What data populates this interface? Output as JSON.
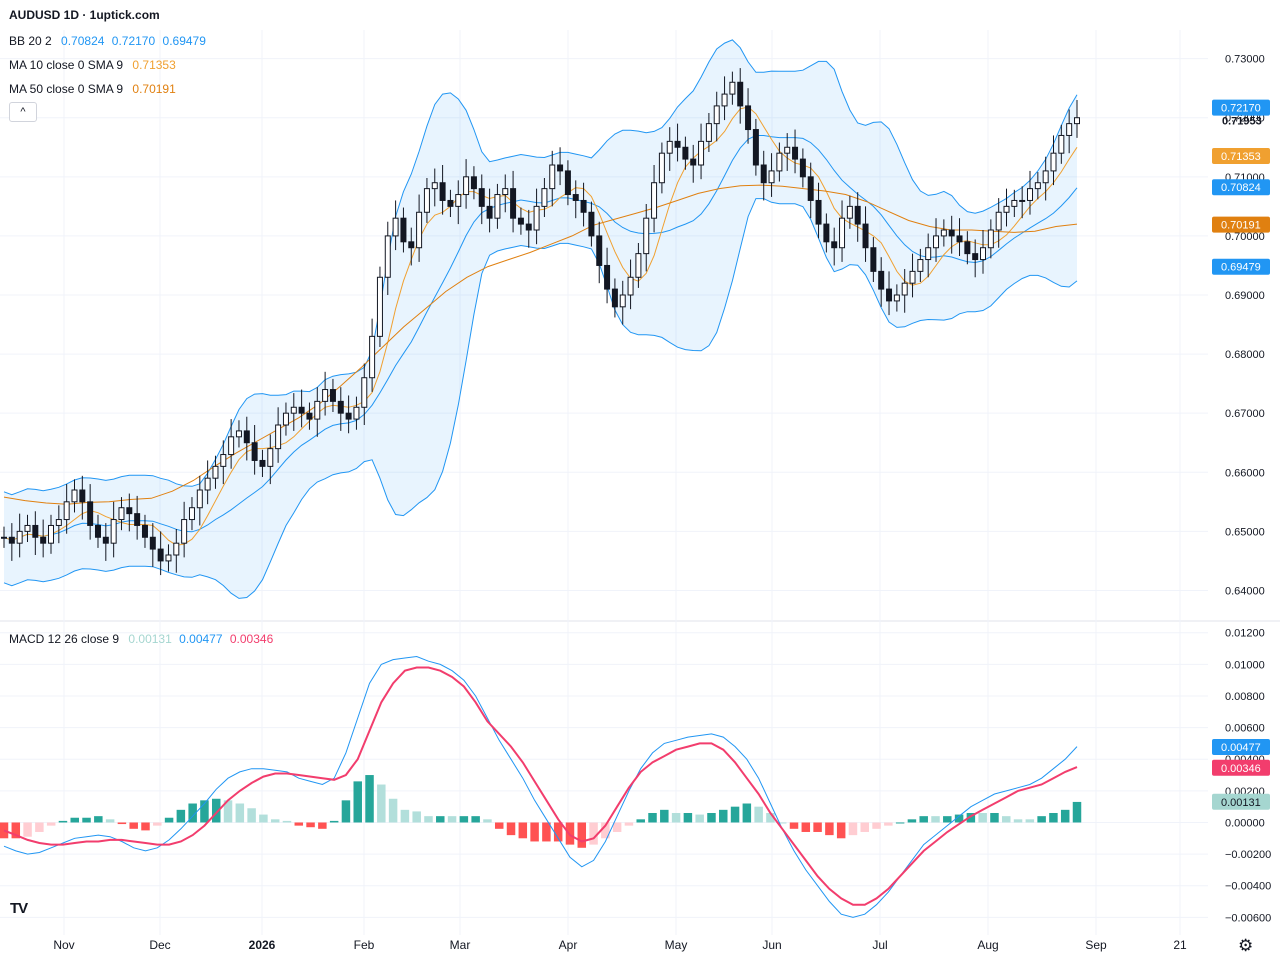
{
  "header": {
    "title": "AUDUSD 1D · 1uptick.com"
  },
  "legends": {
    "bb": {
      "name": "BB 20 2",
      "values": [
        "0.70824",
        "0.72170",
        "0.69479"
      ],
      "color": "#2196f3"
    },
    "ma10": {
      "name": "MA 10 close 0 SMA 9",
      "value": "0.71353",
      "color": "#f0a030"
    },
    "ma50": {
      "name": "MA 50 close 0 SMA 9",
      "value": "0.70191",
      "color": "#e08010"
    },
    "macd": {
      "name": "MACD 12 26 close 9",
      "values": [
        "0.00131",
        "0.00477",
        "0.00346"
      ],
      "colors": [
        "#a5d6d0",
        "#2196f3",
        "#f23d6d"
      ]
    }
  },
  "collapse_icon": "chevron-up-icon",
  "logo_text": "TV",
  "settings_icon": "gear-icon",
  "chart_data": [
    {
      "type": "candlestick",
      "panel": "price",
      "symbol": "AUDUSD",
      "timeframe": "1D",
      "ylim": [
        0.635,
        0.734
      ],
      "y_ticks": [
        "0.73000",
        "0.72000",
        "0.71000",
        "0.70000",
        "0.69000",
        "0.68000",
        "0.67000",
        "0.66000",
        "0.65000",
        "0.64000"
      ],
      "x_tick_labels": [
        "Nov",
        "Dec",
        "2026",
        "Feb",
        "Mar",
        "Apr",
        "May",
        "Jun",
        "Jul",
        "Aug",
        "Sep",
        "21"
      ],
      "last_close": "0.71953",
      "price_badges": [
        {
          "value": "0.72170",
          "color": "#2196f3"
        },
        {
          "value": "0.71353",
          "color": "#f0a030"
        },
        {
          "value": "0.70824",
          "color": "#2196f3"
        },
        {
          "value": "0.70191",
          "color": "#e08010"
        },
        {
          "value": "0.69479",
          "color": "#2196f3"
        }
      ],
      "close_series": [
        0.649,
        0.648,
        0.65,
        0.651,
        0.649,
        0.648,
        0.651,
        0.652,
        0.655,
        0.657,
        0.655,
        0.651,
        0.649,
        0.648,
        0.652,
        0.654,
        0.653,
        0.651,
        0.649,
        0.647,
        0.645,
        0.646,
        0.648,
        0.652,
        0.654,
        0.657,
        0.659,
        0.661,
        0.663,
        0.666,
        0.667,
        0.665,
        0.662,
        0.661,
        0.664,
        0.668,
        0.67,
        0.671,
        0.67,
        0.669,
        0.672,
        0.674,
        0.672,
        0.67,
        0.669,
        0.671,
        0.676,
        0.683,
        0.693,
        0.7,
        0.703,
        0.699,
        0.698,
        0.704,
        0.708,
        0.709,
        0.706,
        0.705,
        0.707,
        0.71,
        0.708,
        0.705,
        0.703,
        0.707,
        0.708,
        0.703,
        0.702,
        0.701,
        0.705,
        0.708,
        0.712,
        0.711,
        0.707,
        0.706,
        0.704,
        0.7,
        0.695,
        0.691,
        0.688,
        0.69,
        0.693,
        0.697,
        0.703,
        0.709,
        0.714,
        0.716,
        0.715,
        0.713,
        0.712,
        0.716,
        0.719,
        0.722,
        0.724,
        0.726,
        0.722,
        0.718,
        0.712,
        0.709,
        0.711,
        0.714,
        0.715,
        0.713,
        0.71,
        0.706,
        0.702,
        0.699,
        0.698,
        0.703,
        0.705,
        0.702,
        0.698,
        0.694,
        0.691,
        0.689,
        0.69,
        0.692,
        0.694,
        0.696,
        0.698,
        0.7,
        0.701,
        0.7,
        0.699,
        0.697,
        0.696,
        0.698,
        0.701,
        0.704,
        0.705,
        0.706,
        0.706,
        0.708,
        0.709,
        0.711,
        0.714,
        0.717,
        0.719,
        0.72
      ],
      "ma50_series": [
        0.6558,
        0.6552,
        0.6548,
        0.6546,
        0.6549,
        0.655,
        0.6554,
        0.6556,
        0.6568,
        0.6586,
        0.661,
        0.6632,
        0.6652,
        0.6672,
        0.6692,
        0.6716,
        0.6746,
        0.6778,
        0.6812,
        0.6846,
        0.6876,
        0.6906,
        0.693,
        0.6948,
        0.696,
        0.6972,
        0.6986,
        0.7,
        0.7018,
        0.7028,
        0.7038,
        0.7048,
        0.706,
        0.7072,
        0.708,
        0.7085,
        0.7086,
        0.7084,
        0.708,
        0.7076,
        0.707,
        0.7058,
        0.7042,
        0.7026,
        0.7016,
        0.701,
        0.701,
        0.7008,
        0.7006,
        0.7008,
        0.7016,
        0.702
      ],
      "bands": {
        "upper_peak": 0.73,
        "lower_trough": 0.641
      }
    },
    {
      "type": "histogram+line",
      "panel": "macd",
      "ylim": [
        -0.0068,
        0.0123
      ],
      "y_ticks": [
        "0.01200",
        "0.01000",
        "0.00800",
        "0.00600",
        "0.00400",
        "0.00200",
        "0.00000",
        "−0.00200",
        "−0.00400",
        "−0.00600"
      ],
      "series": [
        {
          "name": "MACD",
          "color": "#2196f3",
          "values": [
            -0.0015,
            -0.0018,
            -0.002,
            -0.0019,
            -0.0016,
            -0.0013,
            -0.001,
            -0.0009,
            -0.0008,
            -0.0009,
            -0.0012,
            -0.0016,
            -0.0018,
            -0.0016,
            -0.0011,
            -0.0004,
            0.0004,
            0.0012,
            0.0021,
            0.0028,
            0.0032,
            0.0034,
            0.0034,
            0.0033,
            0.0032,
            0.0028,
            0.0026,
            0.0024,
            0.0028,
            0.0044,
            0.0066,
            0.0088,
            0.01,
            0.0103,
            0.0104,
            0.0105,
            0.0102,
            0.01,
            0.0096,
            0.009,
            0.008,
            0.0066,
            0.0052,
            0.004,
            0.0028,
            0.0014,
            0.0002,
            -0.001,
            -0.0022,
            -0.0028,
            -0.0024,
            -0.0012,
            0.0004,
            0.002,
            0.0034,
            0.0044,
            0.005,
            0.0052,
            0.0054,
            0.0055,
            0.0056,
            0.0054,
            0.0048,
            0.004,
            0.0028,
            0.0012,
            -0.0004,
            -0.0018,
            -0.003,
            -0.004,
            -0.005,
            -0.0058,
            -0.006,
            -0.0058,
            -0.0052,
            -0.0044,
            -0.0034,
            -0.0024,
            -0.0014,
            -0.0008,
            -0.0002,
            0.0004,
            0.001,
            0.0014,
            0.0018,
            0.002,
            0.0022,
            0.0024,
            0.0028,
            0.0034,
            0.004,
            0.0048
          ]
        },
        {
          "name": "Signal",
          "color": "#f23d6d",
          "values": [
            -0.0005,
            -0.0008,
            -0.0011,
            -0.0013,
            -0.0014,
            -0.0014,
            -0.0013,
            -0.0012,
            -0.0012,
            -0.0011,
            -0.0011,
            -0.0012,
            -0.0013,
            -0.0014,
            -0.0014,
            -0.0012,
            -0.0008,
            -0.0002,
            0.0006,
            0.0014,
            0.002,
            0.0025,
            0.0029,
            0.0031,
            0.0031,
            0.003,
            0.0029,
            0.0028,
            0.0027,
            0.003,
            0.004,
            0.0058,
            0.0076,
            0.0088,
            0.0096,
            0.0098,
            0.0098,
            0.0096,
            0.0092,
            0.0086,
            0.0076,
            0.0064,
            0.0056,
            0.0048,
            0.0038,
            0.0026,
            0.0014,
            0.0002,
            -0.0008,
            -0.0012,
            -0.001,
            -0.0002,
            0.001,
            0.0022,
            0.0032,
            0.0038,
            0.0042,
            0.0046,
            0.0048,
            0.005,
            0.005,
            0.0046,
            0.0038,
            0.0028,
            0.0018,
            0.0006,
            -0.0004,
            -0.0014,
            -0.0024,
            -0.0034,
            -0.0042,
            -0.0048,
            -0.0052,
            -0.0052,
            -0.0048,
            -0.0042,
            -0.0034,
            -0.0026,
            -0.0018,
            -0.0012,
            -0.0006,
            -0.0001,
            0.0004,
            0.0008,
            0.0012,
            0.0016,
            0.002,
            0.0022,
            0.0024,
            0.0028,
            0.0032,
            0.0035
          ]
        }
      ]
    }
  ]
}
